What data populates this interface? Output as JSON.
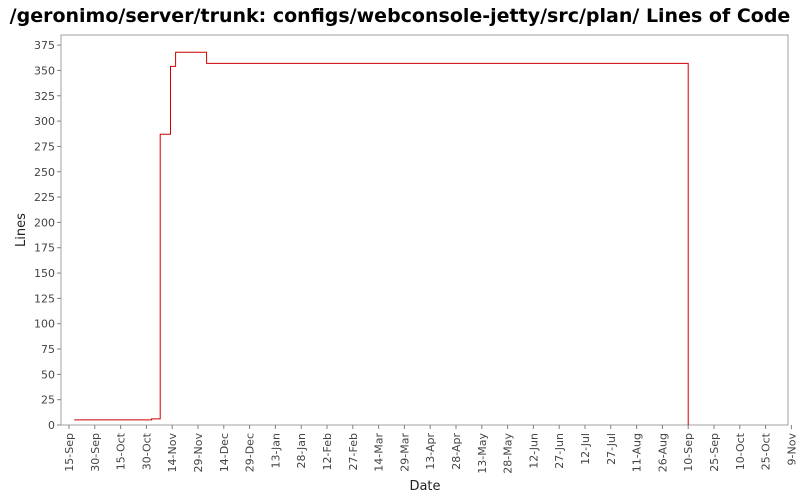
{
  "chart_data": {
    "type": "line",
    "title": "/geronimo/server/trunk: configs/webconsole-jetty/src/plan/ Lines of Code",
    "xlabel": "Date",
    "ylabel": "Lines",
    "ylim": [
      0,
      385
    ],
    "yticks": [
      0,
      25,
      50,
      75,
      100,
      125,
      150,
      175,
      200,
      225,
      250,
      275,
      300,
      325,
      350,
      375
    ],
    "xticks": [
      "15-Sep",
      "30-Sep",
      "15-Oct",
      "30-Oct",
      "14-Nov",
      "29-Nov",
      "14-Dec",
      "29-Dec",
      "13-Jan",
      "28-Jan",
      "12-Feb",
      "27-Feb",
      "14-Mar",
      "29-Mar",
      "13-Apr",
      "28-Apr",
      "13-May",
      "28-May",
      "12-Jun",
      "27-Jun",
      "12-Jul",
      "27-Jul",
      "11-Aug",
      "26-Aug",
      "10-Sep",
      "25-Sep",
      "10-Oct",
      "25-Oct",
      "9-Nov"
    ],
    "grid": false,
    "step": true,
    "line_color": "#cc0000",
    "series": [
      {
        "x_day": [
          3,
          47,
          48,
          52,
          53,
          58,
          59,
          62,
          80,
          359,
          360
        ],
        "values": [
          5,
          5,
          6,
          6,
          287,
          287,
          354,
          368,
          357,
          357,
          0
        ]
      }
    ]
  }
}
